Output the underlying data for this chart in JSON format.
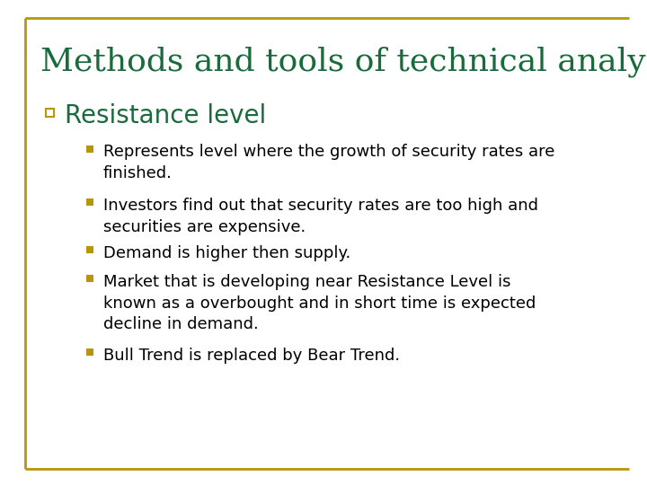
{
  "title": "Methods and tools of technical analysis",
  "title_color": "#1a6b3c",
  "background_color": "#ffffff",
  "border_color": "#b8960c",
  "heading": "Resistance level",
  "heading_color": "#1a6b3c",
  "bullet_sq_color": "#b8960c",
  "bullet_items": [
    "Represents level where the growth of security rates are\nfinished.",
    "Investors find out that security rates are too high and\nsecurities are expensive.",
    "Demand is higher then supply.",
    "Market that is developing near Resistance Level is\nknown as a overbought and in short time is expected\ndecline in demand.",
    "Bull Trend is replaced by Bear Trend."
  ],
  "text_color": "#000000",
  "title_fontsize": 26,
  "heading_fontsize": 20,
  "bullet_fontsize": 13,
  "figsize": [
    7.2,
    5.4
  ],
  "dpi": 100
}
